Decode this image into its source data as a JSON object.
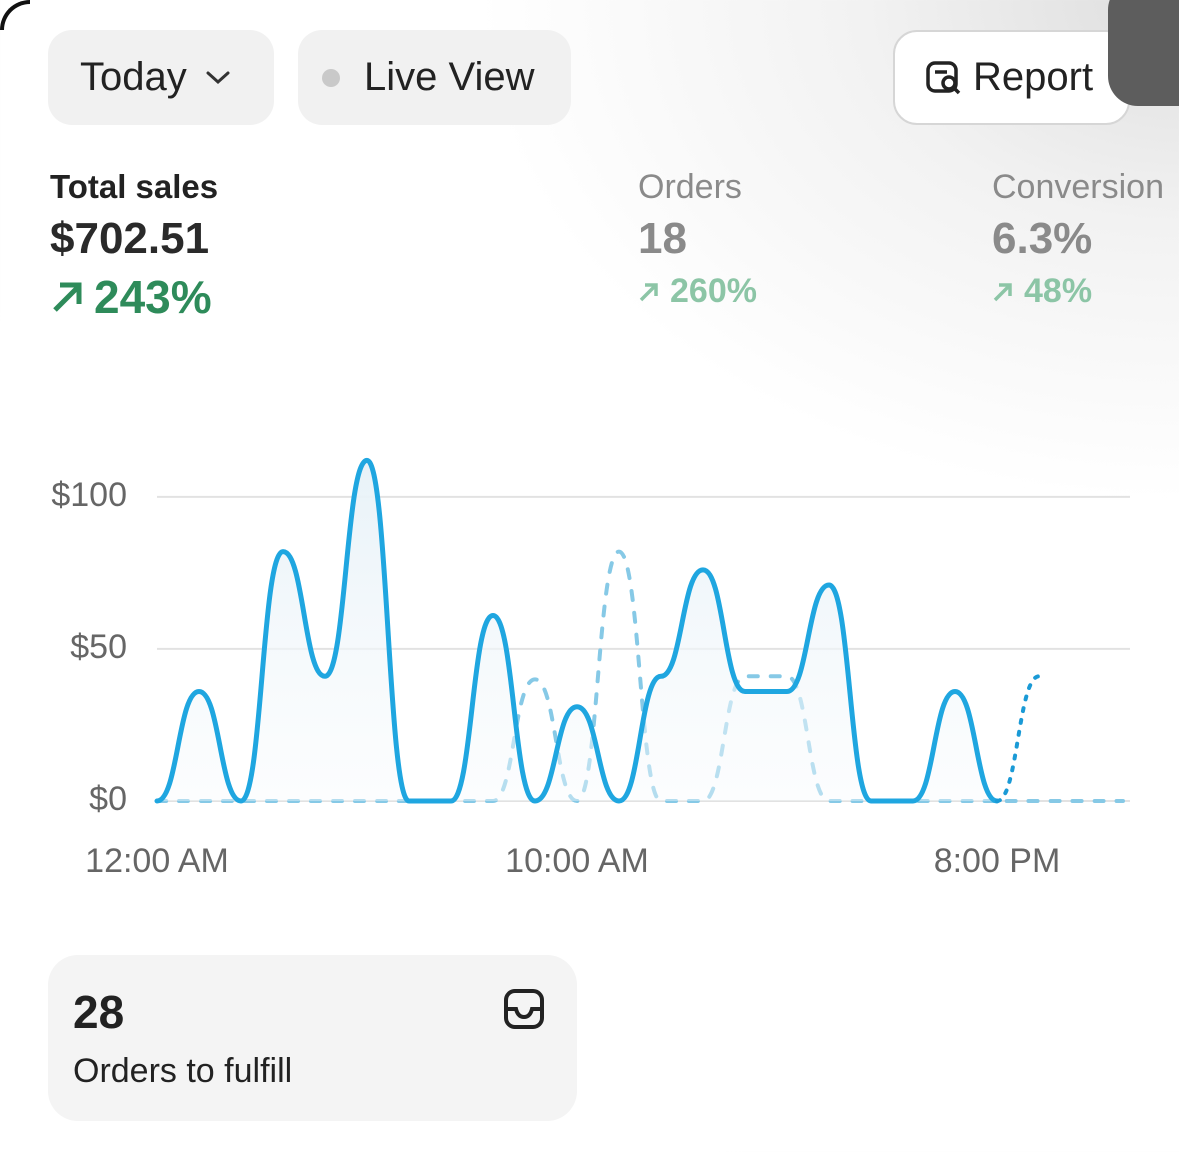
{
  "toolbar": {
    "date_button": "Today",
    "live_button": "Live View",
    "report_button": "Report"
  },
  "metrics": [
    {
      "label": "Total sales",
      "value": "$702.51",
      "change": "243%"
    },
    {
      "label": "Orders",
      "value": "18",
      "change": "260%"
    },
    {
      "label": "Conversion",
      "value": "6.3%",
      "change": "48%"
    }
  ],
  "chart_data": {
    "type": "line",
    "categories": [
      "12:00 AM",
      null,
      null,
      null,
      null,
      null,
      null,
      null,
      null,
      null,
      "10:00 AM",
      null,
      null,
      null,
      null,
      null,
      null,
      null,
      null,
      null,
      "8:00 PM",
      null,
      null,
      null
    ],
    "ylim": [
      0,
      120
    ],
    "yticks": [
      {
        "value": 0,
        "label": "$0"
      },
      {
        "value": 50,
        "label": "$50"
      },
      {
        "value": 100,
        "label": "$100"
      }
    ],
    "grid": true,
    "series": [
      {
        "color": "#1fa6e0",
        "style": "solid",
        "area": true,
        "values": [
          0,
          36,
          0,
          82,
          41,
          112,
          0,
          0,
          61,
          0,
          31,
          0,
          41,
          76,
          36,
          36,
          71,
          0,
          0,
          36,
          0,
          null,
          null,
          null
        ]
      },
      {
        "color": "#1a9ad6",
        "style": "dotted",
        "values": [
          null,
          null,
          null,
          null,
          null,
          null,
          null,
          null,
          null,
          null,
          null,
          null,
          null,
          null,
          null,
          null,
          null,
          null,
          null,
          null,
          0,
          41,
          null,
          null
        ]
      },
      {
        "color": "#86c9e6",
        "style": "dashed",
        "values": [
          0,
          0,
          0,
          0,
          0,
          0,
          0,
          0,
          0,
          40,
          0,
          82,
          0,
          0,
          41,
          41,
          0,
          0,
          0,
          0,
          0,
          0,
          0,
          0
        ]
      }
    ]
  },
  "fulfill_card": {
    "count": "28",
    "label": "Orders to fulfill"
  }
}
